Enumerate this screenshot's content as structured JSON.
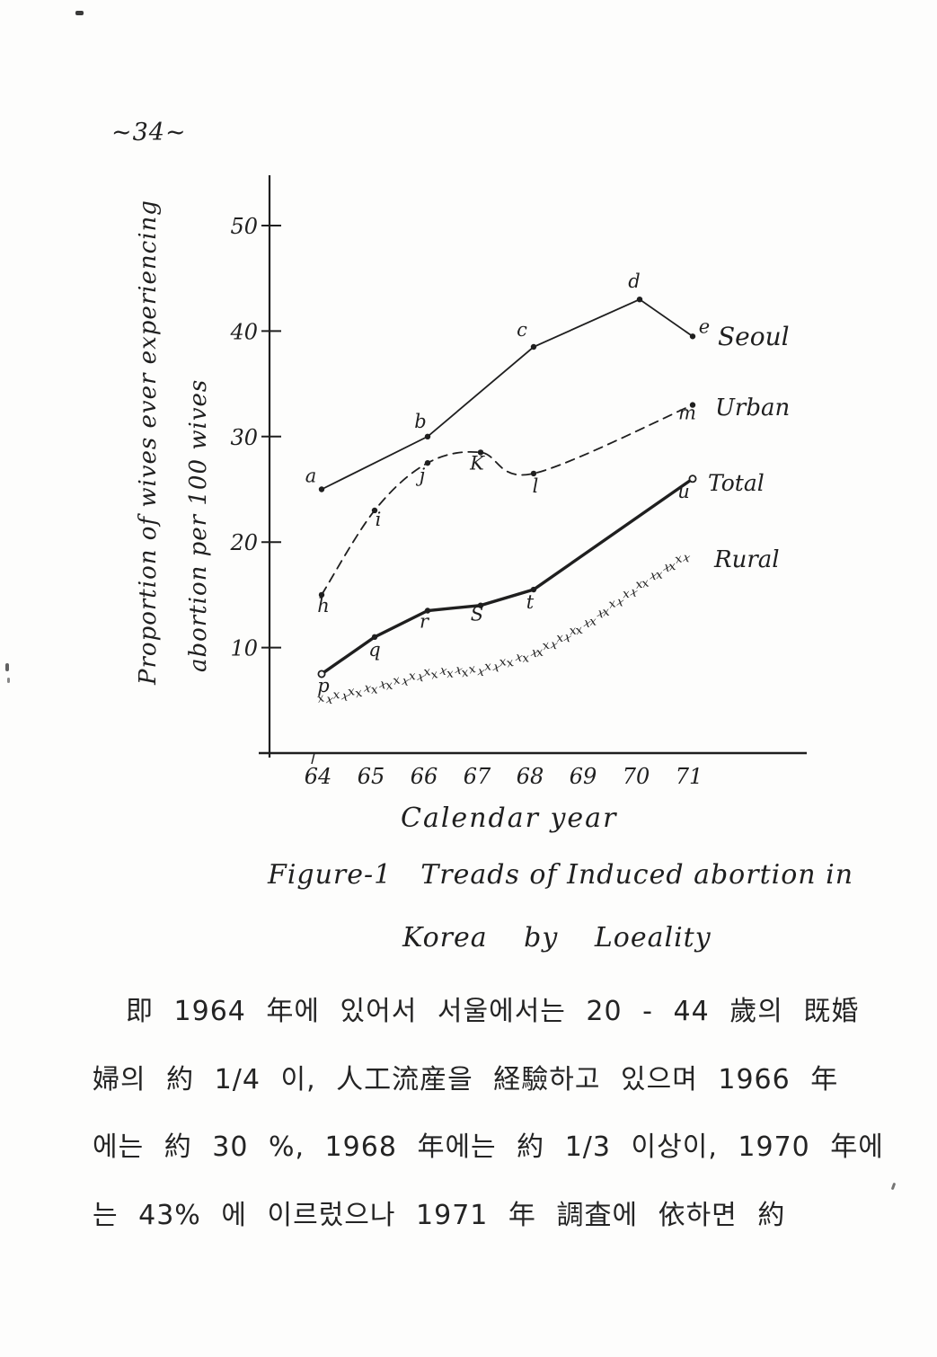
{
  "page": {
    "number": "~34~"
  },
  "chart_data": {
    "type": "line",
    "title": "",
    "xlabel": "Calendar year",
    "ylabel_line1": "Proportion of wives ever experiencing",
    "ylabel_line2": "abortion per 100 wives",
    "x_ticklabels": [
      "64",
      "65",
      "66",
      "67",
      "68",
      "69",
      "70",
      "71"
    ],
    "y_ticklabels": [
      "50",
      "40",
      "30",
      "20",
      "10"
    ],
    "xlim": [
      63.5,
      72.5
    ],
    "ylim": [
      0,
      53
    ],
    "grid": false,
    "legend_position": "right of line ends",
    "series": [
      {
        "name": "Seoul",
        "style": "solid",
        "x": [
          64,
          66,
          68,
          70,
          71
        ],
        "values": [
          25,
          30,
          38.5,
          43,
          39.5
        ],
        "point_labels": [
          "a",
          "b",
          "c",
          "d",
          "e"
        ]
      },
      {
        "name": "Urban",
        "style": "dashed",
        "x": [
          64,
          65,
          66,
          67,
          68,
          71
        ],
        "values": [
          15,
          23,
          27.5,
          28.5,
          26.5,
          33
        ],
        "point_labels": [
          "h",
          "i",
          "j",
          "K",
          "l",
          "m"
        ]
      },
      {
        "name": "Total",
        "style": "bold-solid",
        "x": [
          64,
          65,
          66,
          67,
          68,
          71
        ],
        "values": [
          7.5,
          11,
          13.5,
          14,
          15.5,
          26
        ],
        "point_labels": [
          "p",
          "q",
          "r",
          "S",
          "t",
          "u"
        ]
      },
      {
        "name": "Rural",
        "style": "x-marks",
        "x": [
          64,
          65,
          66,
          67,
          68,
          69,
          70,
          71
        ],
        "values": [
          4.7,
          5.8,
          7.2,
          7.5,
          9,
          11.8,
          15.5,
          18.7
        ],
        "point_labels": []
      }
    ]
  },
  "caption": {
    "figure_label": "Figure-1",
    "line1": "Treads of Induced abortion in",
    "line2": "Korea by Loeality"
  },
  "body_text": {
    "line1": "即 1964 年에 있어서 서울에서는 20 - 44 歲의 既婚",
    "line2": "婦의 約 1/4 이, 人工流産을 経驗하고 있으며 1966 年",
    "line3": "에는 約 30 %, 1968 年에는 約 1/3 이상이, 1970 年에",
    "line4": "는 43% 에 이르렀으나 1971 年 調査에 依하면 約"
  },
  "colors": {
    "ink": "#1f1f1f",
    "paper": "#fdfdfc"
  }
}
